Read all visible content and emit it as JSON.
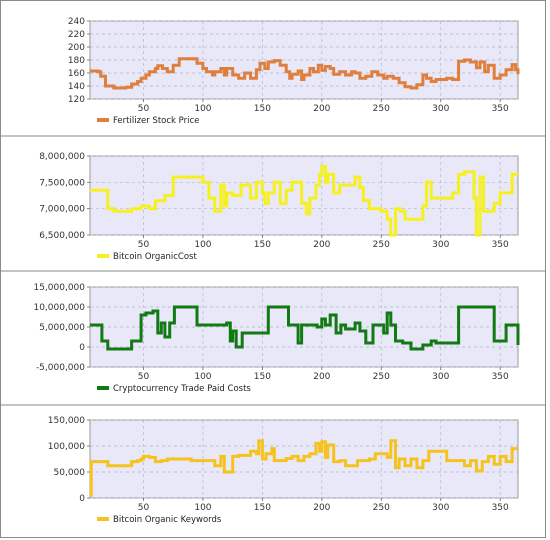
{
  "chart_data": [
    {
      "type": "line",
      "xlim": [
        5,
        365
      ],
      "ylim": [
        120,
        240
      ],
      "x_ticks": [
        "50",
        "100",
        "150",
        "200",
        "250",
        "300",
        "350"
      ],
      "y_ticks": [
        "120",
        "140",
        "160",
        "180",
        "200",
        "220",
        "240"
      ],
      "grid": true,
      "legend_position": "bottom-left",
      "series": [
        {
          "name": "Fertilizer Stock Price",
          "color": "#e07e3c",
          "x": [
            5,
            12,
            14,
            18,
            25,
            35,
            40,
            45,
            48,
            52,
            55,
            60,
            62,
            66,
            70,
            75,
            80,
            85,
            90,
            95,
            100,
            103,
            108,
            110,
            115,
            118,
            120,
            125,
            130,
            135,
            140,
            145,
            148,
            152,
            155,
            160,
            165,
            170,
            173,
            175,
            180,
            183,
            185,
            190,
            193,
            197,
            200,
            203,
            207,
            210,
            215,
            220,
            225,
            228,
            232,
            237,
            242,
            247,
            252,
            255,
            260,
            265,
            270,
            275,
            280,
            285,
            288,
            292,
            296,
            300,
            305,
            310,
            315,
            320,
            325,
            330,
            333,
            337,
            340,
            345,
            350,
            355,
            360,
            363,
            365
          ],
          "y": [
            163,
            162,
            155,
            140,
            137,
            138,
            143,
            147,
            152,
            157,
            162,
            167,
            171,
            167,
            162,
            172,
            182,
            182,
            182,
            175,
            167,
            162,
            157,
            162,
            167,
            157,
            167,
            157,
            152,
            160,
            152,
            165,
            175,
            167,
            177,
            179,
            172,
            162,
            152,
            158,
            163,
            150,
            157,
            167,
            162,
            172,
            164,
            170,
            167,
            158,
            162,
            157,
            162,
            160,
            152,
            155,
            162,
            157,
            152,
            155,
            152,
            145,
            139,
            137,
            142,
            157,
            152,
            147,
            150,
            150,
            152,
            150,
            178,
            180,
            177,
            168,
            177,
            162,
            172,
            152,
            157,
            165,
            173,
            165,
            158
          ]
        }
      ]
    },
    {
      "type": "line",
      "xlim": [
        5,
        365
      ],
      "ylim": [
        6500000,
        8000000
      ],
      "x_ticks": [
        "50",
        "100",
        "150",
        "200",
        "250",
        "300",
        "350"
      ],
      "y_ticks": [
        "6,500,000",
        "7,000,000",
        "7,500,000",
        "8,000,000"
      ],
      "grid": true,
      "legend_position": "bottom-left",
      "series": [
        {
          "name": "Bitcoin OrganicCost",
          "color": "#f5f01e",
          "x": [
            5,
            15,
            20,
            25,
            35,
            40,
            48,
            55,
            60,
            68,
            75,
            80,
            90,
            100,
            105,
            110,
            115,
            118,
            120,
            125,
            128,
            132,
            140,
            145,
            150,
            152,
            155,
            160,
            165,
            170,
            175,
            180,
            183,
            187,
            190,
            195,
            198,
            200,
            203,
            205,
            210,
            215,
            220,
            225,
            228,
            232,
            235,
            240,
            250,
            255,
            258,
            262,
            266,
            270,
            280,
            285,
            288,
            292,
            296,
            300,
            305,
            310,
            315,
            320,
            325,
            328,
            330,
            333,
            336,
            340,
            345,
            350,
            355,
            360,
            365
          ],
          "y": [
            7350000,
            7350000,
            7000000,
            6950000,
            6950000,
            7000000,
            7050000,
            7000000,
            7150000,
            7250000,
            7600000,
            7600000,
            7600000,
            7500000,
            7200000,
            6950000,
            7450000,
            7050000,
            7300000,
            7250000,
            7250000,
            7450000,
            7200000,
            7500000,
            7300000,
            7100000,
            7300000,
            7500000,
            7100000,
            7350000,
            7500000,
            7500000,
            7100000,
            6900000,
            7200000,
            7450000,
            7650000,
            7800000,
            7500000,
            7650000,
            7300000,
            7450000,
            7450000,
            7450000,
            7600000,
            7400000,
            7150000,
            7000000,
            6950000,
            6800000,
            6500000,
            7000000,
            6950000,
            6800000,
            6800000,
            7050000,
            7500000,
            7200000,
            7200000,
            7200000,
            7200000,
            7300000,
            7650000,
            7700000,
            7700000,
            7200000,
            6500000,
            7600000,
            6950000,
            6950000,
            7100000,
            7300000,
            7300000,
            7650000,
            7650000
          ]
        }
      ]
    },
    {
      "type": "line",
      "xlim": [
        5,
        365
      ],
      "ylim": [
        -5000000,
        15000000
      ],
      "x_ticks": [
        "50",
        "100",
        "150",
        "200",
        "250",
        "300",
        "350"
      ],
      "y_ticks": [
        "-5,000,000",
        "0",
        "5,000,000",
        "10,000,000",
        "15,000,000"
      ],
      "grid": true,
      "legend_position": "bottom-left",
      "series": [
        {
          "name": "Cryptocurrency Trade Paid Costs",
          "color": "#127a12",
          "x": [
            5,
            12,
            15,
            20,
            25,
            35,
            40,
            48,
            52,
            58,
            62,
            65,
            68,
            72,
            76,
            80,
            85,
            90,
            95,
            100,
            102,
            108,
            115,
            120,
            123,
            125,
            128,
            133,
            140,
            148,
            152,
            155,
            158,
            165,
            172,
            178,
            180,
            183,
            187,
            192,
            196,
            200,
            203,
            207,
            212,
            216,
            220,
            225,
            228,
            232,
            237,
            243,
            247,
            252,
            255,
            258,
            262,
            268,
            275,
            280,
            285,
            288,
            292,
            296,
            300,
            305,
            310,
            315,
            320,
            325,
            330,
            335,
            340,
            345,
            350,
            355,
            360,
            365
          ],
          "y": [
            5500000,
            5500000,
            1500000,
            -500000,
            -500000,
            -500000,
            1500000,
            8000000,
            8500000,
            9000000,
            3500000,
            6000000,
            2500000,
            6000000,
            10000000,
            10000000,
            10000000,
            10000000,
            5500000,
            5500000,
            5500000,
            5500000,
            5500000,
            6000000,
            1500000,
            4000000,
            0,
            3500000,
            3500000,
            3500000,
            3500000,
            10000000,
            10000000,
            10000000,
            5500000,
            5500000,
            1000000,
            5500000,
            5500000,
            5500000,
            5000000,
            7000000,
            5500000,
            8000000,
            3500000,
            5500000,
            4500000,
            4500000,
            6000000,
            4000000,
            1000000,
            5500000,
            5500000,
            3500000,
            8500000,
            5500000,
            1500000,
            1000000,
            -500000,
            -500000,
            500000,
            500000,
            1500000,
            1000000,
            1000000,
            1000000,
            1000000,
            10000000,
            10000000,
            10000000,
            10000000,
            10000000,
            10000000,
            1500000,
            1500000,
            5500000,
            5500000,
            500000
          ]
        }
      ]
    },
    {
      "type": "line",
      "xlim": [
        5,
        365
      ],
      "ylim": [
        0,
        150000
      ],
      "x_ticks": [
        "50",
        "100",
        "150",
        "200",
        "250",
        "300",
        "350"
      ],
      "y_ticks": [
        "0",
        "50,000",
        "100,000",
        "150,000"
      ],
      "grid": true,
      "legend_position": "bottom-left",
      "series": [
        {
          "name": "Bitcoin Organic Keywords",
          "color": "#f6c21e",
          "x": [
            5,
            6,
            10,
            15,
            20,
            25,
            35,
            40,
            45,
            48,
            50,
            55,
            58,
            60,
            65,
            70,
            75,
            80,
            90,
            100,
            105,
            110,
            115,
            118,
            125,
            130,
            135,
            140,
            145,
            147,
            150,
            153,
            158,
            160,
            165,
            170,
            175,
            180,
            185,
            190,
            195,
            198,
            200,
            203,
            205,
            210,
            215,
            220,
            225,
            230,
            235,
            240,
            245,
            250,
            255,
            258,
            262,
            265,
            270,
            275,
            280,
            285,
            290,
            295,
            300,
            305,
            310,
            315,
            320,
            325,
            330,
            335,
            340,
            345,
            350,
            355,
            360,
            365
          ],
          "y": [
            5000,
            70000,
            70000,
            70000,
            62000,
            62000,
            62000,
            70000,
            72000,
            75000,
            80000,
            78000,
            78000,
            70000,
            72000,
            75000,
            75000,
            75000,
            72000,
            72000,
            72000,
            62000,
            80000,
            50000,
            80000,
            82000,
            82000,
            90000,
            85000,
            110000,
            75000,
            85000,
            95000,
            72000,
            72000,
            76000,
            80000,
            72000,
            80000,
            85000,
            105000,
            90000,
            108000,
            78000,
            102000,
            70000,
            72000,
            62000,
            62000,
            72000,
            72000,
            75000,
            85000,
            85000,
            78000,
            110000,
            58000,
            75000,
            62000,
            75000,
            58000,
            72000,
            90000,
            90000,
            90000,
            72000,
            72000,
            72000,
            62000,
            72000,
            52000,
            70000,
            80000,
            65000,
            80000,
            70000,
            95000,
            95000
          ]
        }
      ]
    }
  ]
}
